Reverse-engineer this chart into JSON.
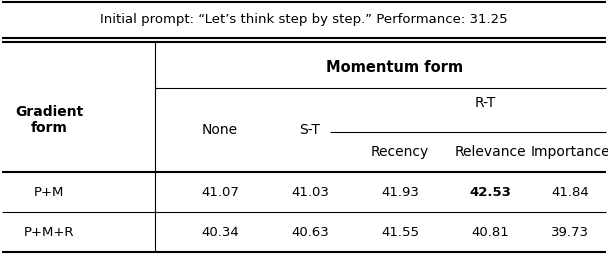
{
  "caption": "Initial prompt: “Let’s think step by step.” Performance: 31.25",
  "row_label_1": "P+M",
  "row_label_2": "P+M+R",
  "data_PM": [
    41.07,
    41.03,
    41.93,
    42.53,
    41.84
  ],
  "data_PMR": [
    40.34,
    40.63,
    41.55,
    40.81,
    39.73
  ],
  "bold_cell": [
    0,
    3
  ],
  "gradient_form_label": "Gradient\nform",
  "momentum_form_label": "Momentum form",
  "none_label": "None",
  "st_label": "S-T",
  "rt_label": "R-T",
  "sub_labels": [
    "Recency",
    "Relevance",
    "Importance"
  ],
  "bg_color": "#ffffff",
  "text_color": "#000000",
  "figsize": [
    6.08,
    2.66
  ],
  "dpi": 100
}
